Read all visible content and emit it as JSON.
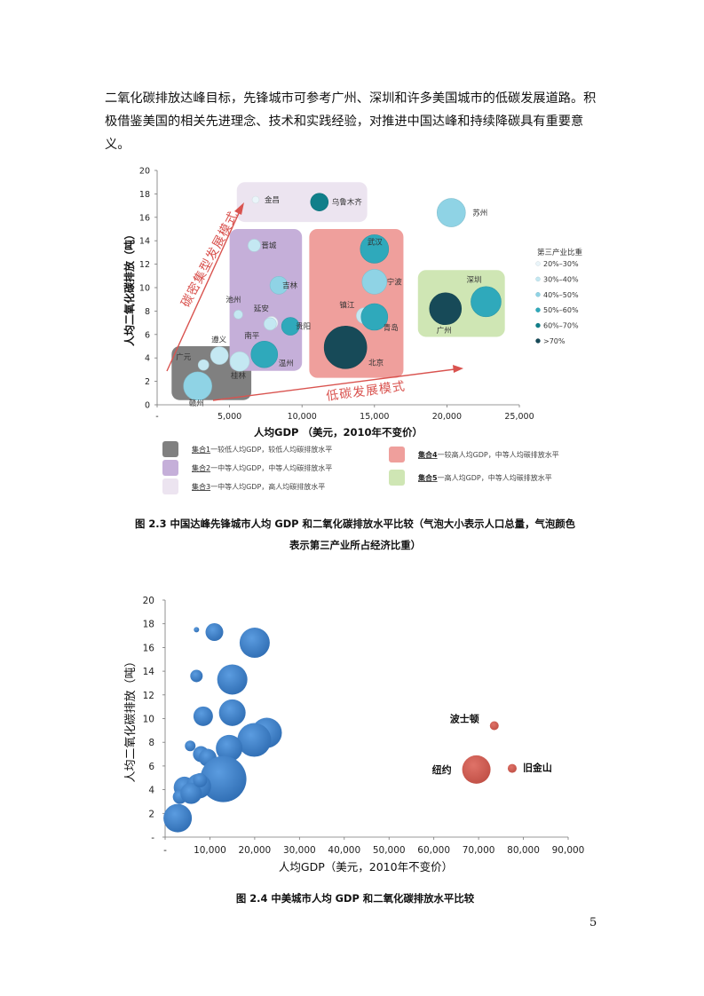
{
  "paragraph": {
    "line1": "二氧化碳排放达峰目标，先锋城市可参考广州、深圳和许多美国城市的低碳发展道路。积",
    "line2": "极借鉴美国的相关先进理念、技术和实践经验，对推进中国达峰和持续降碳具有重要意义。"
  },
  "figure1": {
    "caption_line1": "图 2.3 中国达峰先锋城市人均 GDP 和二氧化碳排放水平比较（气泡大小表示人口总量，气泡颜色",
    "caption_line2": "表示第三产业所占经济比重）",
    "arrow_high_carbon": "碳密集型发展模式",
    "arrow_low_carbon": "低碳发展模式",
    "legend_color_title": "第三产业比重",
    "legend_color": [
      {
        "label": "20%–30%",
        "color": "#eaf5fa"
      },
      {
        "label": "30%–40%",
        "color": "#c4e8f2"
      },
      {
        "label": "40%–50%",
        "color": "#8fd3e5"
      },
      {
        "label": "50%–60%",
        "color": "#2fa9bb"
      },
      {
        "label": "60%–70%",
        "color": "#107f8a"
      },
      {
        "label": ">70%",
        "color": "#174a58"
      }
    ],
    "legend_groups": [
      {
        "name": "集合1",
        "desc": "一较低人均GDP，较低人均碳排放水平",
        "color": "#808080"
      },
      {
        "name": "集合2",
        "desc": "一中等人均GDP，中等人均碳排放水平",
        "color": "#c5afd9"
      },
      {
        "name": "集合3",
        "desc": "一中等人均GDP，高人均碳排放水平",
        "color": "#ece4f0"
      },
      {
        "name": "集合4",
        "desc": "一较高人均GDP，中等人均碳排放水平",
        "color": "#ef9f9c"
      },
      {
        "name": "集合5",
        "desc": "一高人均GDP，中等人均碳排放水平",
        "color": "#cfe6b4"
      }
    ]
  },
  "figure2": {
    "caption": "图 2.4 中美城市人均 GDP 和二氧化碳排放水平比较"
  },
  "page_number": "5",
  "chart_data": [
    {
      "type": "scatter",
      "title": "",
      "xlabel": "人均GDP （美元，2010年不变价）",
      "ylabel": "人均二氧化碳排放（吨）",
      "xlim": [
        0,
        25000
      ],
      "ylim": [
        0,
        20
      ],
      "xticks": [
        "-",
        "5,000",
        "10,000",
        "15,000",
        "20,000",
        "25,000"
      ],
      "yticks": [
        "0",
        "2",
        "4",
        "6",
        "8",
        "10",
        "12",
        "14",
        "16",
        "18",
        "20"
      ],
      "groups": [
        {
          "name": "集合1",
          "x0": 1000,
          "x1": 6500,
          "y0": 0.4,
          "y1": 5.0,
          "color": "#808080"
        },
        {
          "name": "集合2",
          "x0": 5000,
          "x1": 10000,
          "y0": 2.9,
          "y1": 15.0,
          "color": "#c5afd9"
        },
        {
          "name": "集合3",
          "x0": 5500,
          "x1": 14500,
          "y0": 15.6,
          "y1": 19.0,
          "color": "#ece4f0"
        },
        {
          "name": "集合4",
          "x0": 10500,
          "x1": 17000,
          "y0": 2.3,
          "y1": 15.0,
          "color": "#ef9f9c"
        },
        {
          "name": "集合5",
          "x0": 18000,
          "x1": 24000,
          "y0": 5.8,
          "y1": 11.5,
          "color": "#cfe6b4"
        }
      ],
      "points": [
        {
          "city": "金昌",
          "x": 6800,
          "y": 17.5,
          "size": 4,
          "color": "#eaf5fa"
        },
        {
          "city": "乌鲁木齐",
          "x": 11200,
          "y": 17.3,
          "size": 10,
          "color": "#107f8a"
        },
        {
          "city": "苏州",
          "x": 20300,
          "y": 16.4,
          "size": 16,
          "color": "#8fd3e5"
        },
        {
          "city": "晋城",
          "x": 6700,
          "y": 13.6,
          "size": 7,
          "color": "#c4e8f2"
        },
        {
          "city": "武汉",
          "x": 15000,
          "y": 13.3,
          "size": 16,
          "color": "#2fa9bb"
        },
        {
          "city": "吉林",
          "x": 8400,
          "y": 10.2,
          "size": 10,
          "color": "#8fd3e5"
        },
        {
          "city": "宁波",
          "x": 15000,
          "y": 10.5,
          "size": 14,
          "color": "#8fd3e5"
        },
        {
          "city": "深圳",
          "x": 22700,
          "y": 8.8,
          "size": 17,
          "color": "#2fa9bb"
        },
        {
          "city": "广州",
          "x": 19900,
          "y": 8.2,
          "size": 18,
          "color": "#174a58"
        },
        {
          "city": "池州",
          "x": 5600,
          "y": 7.7,
          "size": 5,
          "color": "#c4e8f2"
        },
        {
          "city": "延安",
          "x": 7900,
          "y": 7.0,
          "size": 7,
          "color": "#eaf5fa"
        },
        {
          "city": "南平",
          "x": 7800,
          "y": 6.9,
          "size": 7,
          "color": "#c4e8f2"
        },
        {
          "city": "贵阳",
          "x": 9200,
          "y": 6.7,
          "size": 10,
          "color": "#2fa9bb"
        },
        {
          "city": "镇江",
          "x": 14300,
          "y": 7.6,
          "size": 9,
          "color": "#c4e8f2"
        },
        {
          "city": "青岛",
          "x": 15000,
          "y": 7.5,
          "size": 15,
          "color": "#2fa9bb"
        },
        {
          "city": "北京",
          "x": 13000,
          "y": 4.9,
          "size": 24,
          "color": "#174a58"
        },
        {
          "city": "遵义",
          "x": 4300,
          "y": 4.2,
          "size": 10,
          "color": "#c4e8f2"
        },
        {
          "city": "温州",
          "x": 7400,
          "y": 4.3,
          "size": 15,
          "color": "#2fa9bb"
        },
        {
          "city": "广元",
          "x": 3200,
          "y": 3.4,
          "size": 6,
          "color": "#c4e8f2"
        },
        {
          "city": "桂林",
          "x": 5700,
          "y": 3.7,
          "size": 11,
          "color": "#c4e8f2"
        },
        {
          "city": "赣州",
          "x": 2800,
          "y": 1.6,
          "size": 16,
          "color": "#8fd3e5"
        }
      ]
    },
    {
      "type": "scatter",
      "title": "",
      "xlabel": "人均GDP（美元，2010年不变价）",
      "ylabel": "人均二氧化碳排放（吨）",
      "xlim": [
        0,
        90000
      ],
      "ylim": [
        0,
        20
      ],
      "xticks": [
        "-",
        "10,000",
        "20,000",
        "30,000",
        "40,000",
        "50,000",
        "60,000",
        "70,000",
        "80,000",
        "90,000"
      ],
      "yticks": [
        "-",
        "2",
        "4",
        "6",
        "8",
        "10",
        "12",
        "14",
        "16",
        "18",
        "20"
      ],
      "points_china": [
        {
          "x": 7000,
          "y": 17.5,
          "size": 3
        },
        {
          "x": 11000,
          "y": 17.3,
          "size": 10
        },
        {
          "x": 20000,
          "y": 16.4,
          "size": 17
        },
        {
          "x": 7000,
          "y": 13.6,
          "size": 7
        },
        {
          "x": 15000,
          "y": 13.3,
          "size": 17
        },
        {
          "x": 8500,
          "y": 10.2,
          "size": 11
        },
        {
          "x": 15000,
          "y": 10.5,
          "size": 15
        },
        {
          "x": 22700,
          "y": 8.8,
          "size": 17
        },
        {
          "x": 19900,
          "y": 8.2,
          "size": 19
        },
        {
          "x": 5600,
          "y": 7.7,
          "size": 6
        },
        {
          "x": 8000,
          "y": 7.0,
          "size": 9
        },
        {
          "x": 9500,
          "y": 6.7,
          "size": 10
        },
        {
          "x": 14300,
          "y": 7.5,
          "size": 15
        },
        {
          "x": 13000,
          "y": 4.9,
          "size": 26
        },
        {
          "x": 4300,
          "y": 4.2,
          "size": 12
        },
        {
          "x": 7500,
          "y": 4.3,
          "size": 14
        },
        {
          "x": 3300,
          "y": 3.4,
          "size": 8
        },
        {
          "x": 5800,
          "y": 3.7,
          "size": 12
        },
        {
          "x": 2800,
          "y": 1.6,
          "size": 16
        },
        {
          "x": 7800,
          "y": 4.8,
          "size": 8
        }
      ],
      "points_us": [
        {
          "city": "波士顿",
          "x": 73500,
          "y": 9.4,
          "size": 5
        },
        {
          "city": "纽约",
          "x": 69500,
          "y": 5.7,
          "size": 16
        },
        {
          "city": "旧金山",
          "x": 77500,
          "y": 5.8,
          "size": 5
        }
      ],
      "colors": {
        "china": "#3a7dc8",
        "us": "#cf5a4e"
      }
    }
  ]
}
